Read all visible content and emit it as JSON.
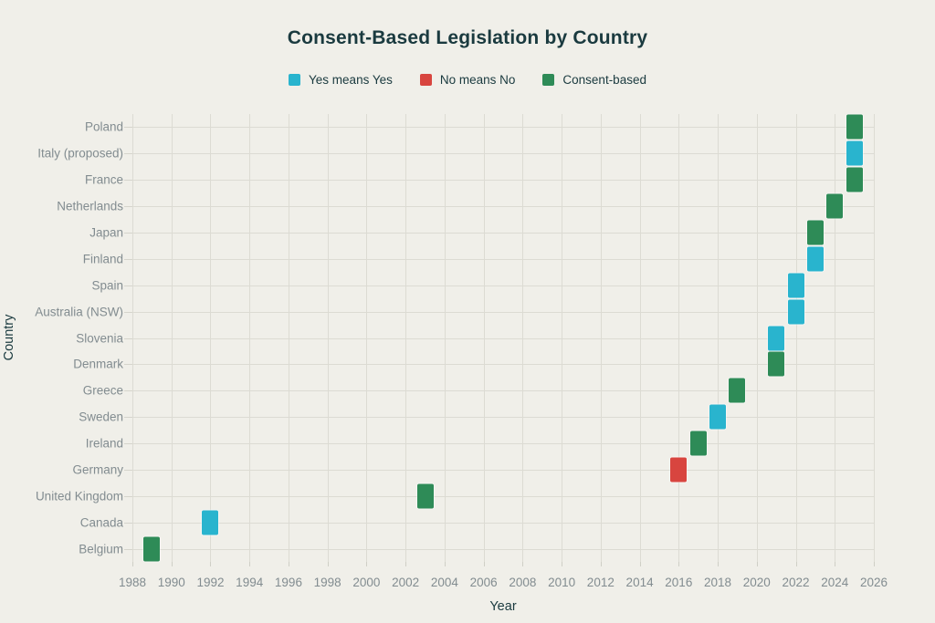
{
  "title": "Consent-Based Legislation by Country",
  "colors": {
    "background": "#f0efe9",
    "heading_text": "#1a3a3f",
    "tick_text": "#828c90",
    "gridline": "#dcdbd3",
    "yes_means_yes": "#29b4ce",
    "no_means_no": "#d8453f",
    "consent_based": "#2e8b57"
  },
  "chart_data": {
    "type": "scatter",
    "title": "Consent-Based Legislation by Country",
    "xlabel": "Year",
    "ylabel": "Country",
    "xlim": [
      1988,
      2026
    ],
    "x_tick_step": 2,
    "grid": true,
    "legend_position": "top",
    "legend": [
      {
        "key": "yes",
        "label": "Yes means Yes",
        "color": "#29b4ce"
      },
      {
        "key": "no",
        "label": "No means No",
        "color": "#d8453f"
      },
      {
        "key": "consent",
        "label": "Consent-based",
        "color": "#2e8b57"
      }
    ],
    "rows": [
      {
        "country": "Poland",
        "year": 2025,
        "category": "consent"
      },
      {
        "country": "Italy (proposed)",
        "year": 2025,
        "category": "yes"
      },
      {
        "country": "France",
        "year": 2025,
        "category": "consent"
      },
      {
        "country": "Netherlands",
        "year": 2024,
        "category": "consent"
      },
      {
        "country": "Japan",
        "year": 2023,
        "category": "consent"
      },
      {
        "country": "Finland",
        "year": 2023,
        "category": "yes"
      },
      {
        "country": "Spain",
        "year": 2022,
        "category": "yes"
      },
      {
        "country": "Australia (NSW)",
        "year": 2022,
        "category": "yes"
      },
      {
        "country": "Slovenia",
        "year": 2021,
        "category": "yes"
      },
      {
        "country": "Denmark",
        "year": 2021,
        "category": "consent"
      },
      {
        "country": "Greece",
        "year": 2019,
        "category": "consent"
      },
      {
        "country": "Sweden",
        "year": 2018,
        "category": "yes"
      },
      {
        "country": "Ireland",
        "year": 2017,
        "category": "consent"
      },
      {
        "country": "Germany",
        "year": 2016,
        "category": "no"
      },
      {
        "country": "United Kingdom",
        "year": 2003,
        "category": "consent"
      },
      {
        "country": "Canada",
        "year": 1992,
        "category": "yes"
      },
      {
        "country": "Belgium",
        "year": 1989,
        "category": "consent"
      }
    ]
  }
}
